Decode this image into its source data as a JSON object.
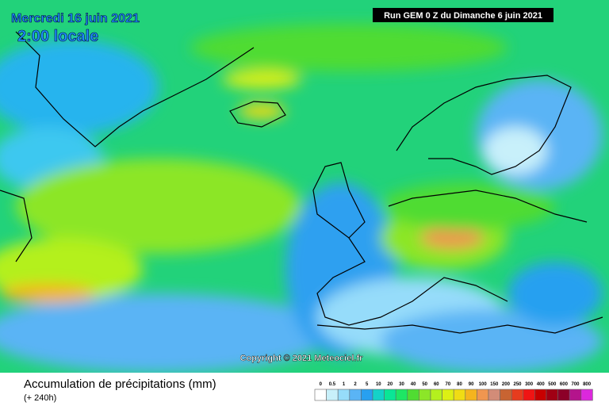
{
  "header": {
    "date": "Mercredi 16 juin 2021",
    "time": "2:00 locale",
    "run": "Run GEM 0 Z du Dimanche 6 juin 2021"
  },
  "copyright": "Copyright © 2021 Meteociel.fr",
  "footer": {
    "title": "Accumulation de précipitations (mm)",
    "subtitle": "(+ 240h)"
  },
  "legend": [
    {
      "label": 0,
      "color": "#ffffff"
    },
    {
      "label": 0.5,
      "color": "#c8f0fa"
    },
    {
      "label": 1,
      "color": "#96dcfa"
    },
    {
      "label": 2,
      "color": "#5ab4f5"
    },
    {
      "label": 5,
      "color": "#28a0f0"
    },
    {
      "label": 10,
      "color": "#14d2c8"
    },
    {
      "label": 20,
      "color": "#0ae696"
    },
    {
      "label": 30,
      "color": "#1ee664"
    },
    {
      "label": 40,
      "color": "#50dc32"
    },
    {
      "label": 50,
      "color": "#8ce628"
    },
    {
      "label": 60,
      "color": "#b4f01e"
    },
    {
      "label": 70,
      "color": "#dcf014"
    },
    {
      "label": 80,
      "color": "#f0dc14"
    },
    {
      "label": 90,
      "color": "#f5b41e"
    },
    {
      "label": 100,
      "color": "#f09650"
    },
    {
      "label": 150,
      "color": "#d28c78"
    },
    {
      "label": 200,
      "color": "#c86432"
    },
    {
      "label": 250,
      "color": "#e63c1e"
    },
    {
      "label": 300,
      "color": "#f01414"
    },
    {
      "label": 400,
      "color": "#c80000"
    },
    {
      "label": 500,
      "color": "#a00014"
    },
    {
      "label": 600,
      "color": "#8c0028"
    },
    {
      "label": 700,
      "color": "#b4148c"
    },
    {
      "label": 800,
      "color": "#dc28dc"
    }
  ]
}
